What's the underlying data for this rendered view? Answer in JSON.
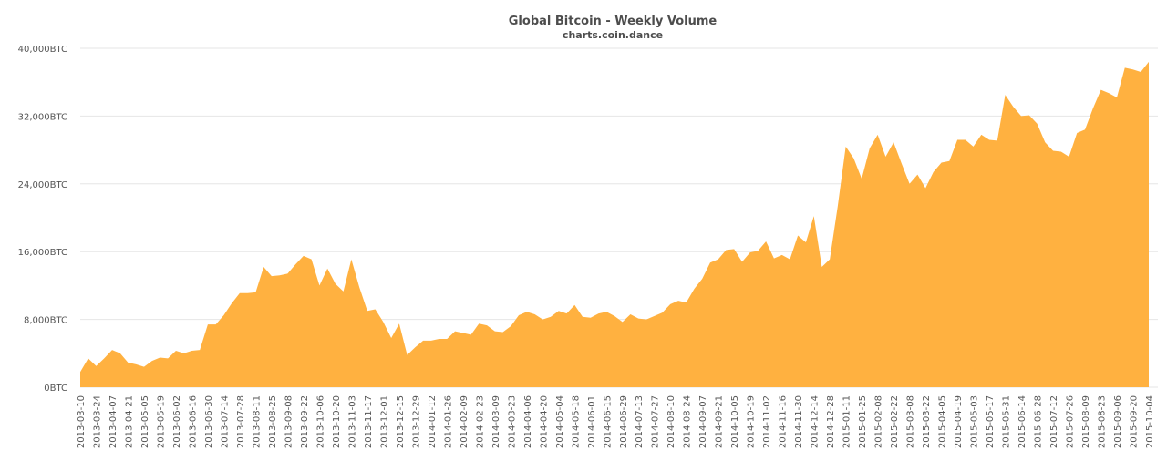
{
  "chart_data": {
    "type": "area",
    "title": "Global Bitcoin - Weekly Volume",
    "subtitle": "charts.coin.dance",
    "y_unit": "BTC",
    "ylim": [
      0,
      40000
    ],
    "yticks": [
      0,
      8000,
      16000,
      24000,
      32000,
      40000
    ],
    "ytick_labels": [
      "0BTC",
      "8,000BTC",
      "16,000BTC",
      "24,000BTC",
      "32,000BTC",
      "40,000BTC"
    ],
    "grid": true,
    "legend": "none",
    "color": "#ffb140",
    "xtick_labels": [
      "2013-03-10",
      "2013-03-24",
      "2013-04-07",
      "2013-04-21",
      "2013-05-05",
      "2013-05-19",
      "2013-06-02",
      "2013-06-16",
      "2013-06-30",
      "2013-07-14",
      "2013-07-28",
      "2013-08-11",
      "2013-08-25",
      "2013-09-08",
      "2013-09-22",
      "2013-10-06",
      "2013-10-20",
      "2013-11-03",
      "2013-11-17",
      "2013-12-01",
      "2013-12-15",
      "2013-12-29",
      "2014-01-12",
      "2014-01-26",
      "2014-02-09",
      "2014-02-23",
      "2014-03-09",
      "2014-03-23",
      "2014-04-06",
      "2014-04-20",
      "2014-05-04",
      "2014-05-18",
      "2014-06-01",
      "2014-06-15",
      "2014-06-29",
      "2014-07-13",
      "2014-07-27",
      "2014-08-10",
      "2014-08-24",
      "2014-09-07",
      "2014-09-21",
      "2014-10-05",
      "2014-10-19",
      "2014-11-02",
      "2014-11-16",
      "2014-11-30",
      "2014-12-14",
      "2014-12-28",
      "2015-01-11",
      "2015-01-25",
      "2015-02-08",
      "2015-02-22",
      "2015-03-08",
      "2015-03-22",
      "2015-04-05",
      "2015-04-19",
      "2015-05-03",
      "2015-05-17",
      "2015-05-31",
      "2015-06-14",
      "2015-06-28",
      "2015-07-12",
      "2015-07-26",
      "2015-08-09",
      "2015-08-23",
      "2015-09-06",
      "2015-09-20",
      "2015-10-04"
    ],
    "series": [
      {
        "values": [
          1800,
          3400,
          2500,
          3400,
          4400,
          4000,
          2900,
          2700,
          2400,
          3100,
          3500,
          3400,
          4300,
          4000,
          4300,
          4400,
          7400,
          7400,
          8500,
          9900,
          11100,
          11100,
          11200,
          14200,
          13100,
          13200,
          13400,
          14500,
          15500,
          15100,
          12000,
          14000,
          12200,
          11300,
          15100,
          11800,
          9000,
          9200,
          7700,
          5800,
          7500,
          3800,
          4700,
          5500,
          5500,
          5700,
          5700,
          6600,
          6400,
          6200,
          7500,
          7300,
          6600,
          6500,
          7200,
          8500,
          8900,
          8600,
          8000,
          8300,
          9000,
          8700,
          9700,
          8300,
          8200,
          8700,
          8900,
          8400,
          7700,
          8600,
          8100,
          8000,
          8400,
          8800,
          9800,
          10200,
          10000,
          11600,
          12800,
          14700,
          15100,
          16200,
          16300,
          14800,
          15900,
          16100,
          17200,
          15200,
          15600,
          15100,
          17900,
          17100,
          20200,
          14200,
          15100,
          21400,
          28400,
          27000,
          24600,
          28200,
          29800,
          27200,
          28900,
          26400,
          24000,
          25100,
          23500,
          25400,
          26500,
          26700,
          29200,
          29200,
          28400,
          29800,
          29200,
          29100,
          34500,
          33100,
          32000,
          32100,
          31100,
          28900,
          27900,
          27800,
          27200,
          30000,
          30400,
          32900,
          35100,
          34700,
          34200,
          37700,
          37500,
          37200,
          38400
        ]
      }
    ]
  }
}
